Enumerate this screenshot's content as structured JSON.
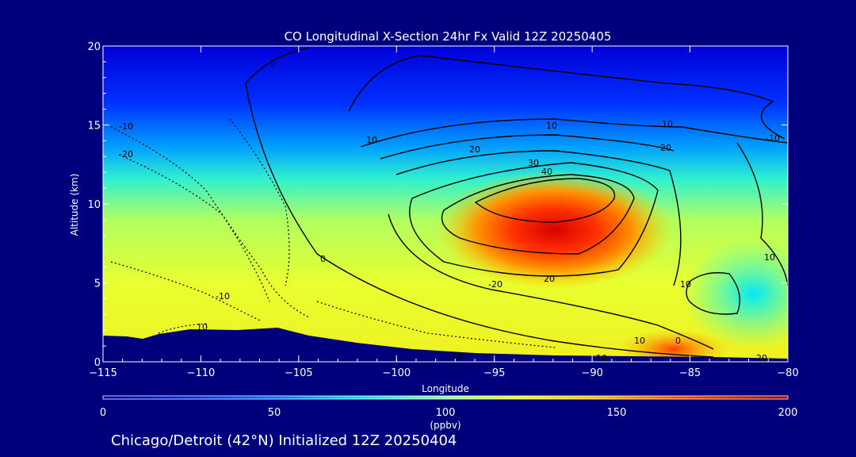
{
  "chart_data": {
    "type": "heatmap",
    "title": "CO Longitudinal X-Section 24hr  Fx Valid 12Z 20250405",
    "xlabel": "Longitude",
    "ylabel": "Altitude (km)",
    "xlim": [
      -115,
      -80
    ],
    "ylim": [
      0,
      20
    ],
    "x_ticks": [
      "-115",
      "-110",
      "-105",
      "-100",
      "-95",
      "-90",
      "-85",
      "-80"
    ],
    "y_ticks": [
      "0",
      "5",
      "10",
      "15",
      "20"
    ],
    "colorbar": {
      "min": 0,
      "max": 200,
      "ticks": [
        "0",
        "50",
        "100",
        "150",
        "200"
      ],
      "unit": "(ppbv)"
    },
    "contour_labels": [
      "0",
      "10",
      "20",
      "30",
      "40",
      "-10",
      "-20",
      "10",
      "20",
      "10",
      "-10",
      "0",
      "-20",
      "20",
      "10",
      "-10",
      "-10",
      "-20",
      "10",
      "0",
      "10",
      "10",
      "-10"
    ],
    "footer": "Chicago/Detroit (42°N) Initialized 12Z 20250404"
  }
}
